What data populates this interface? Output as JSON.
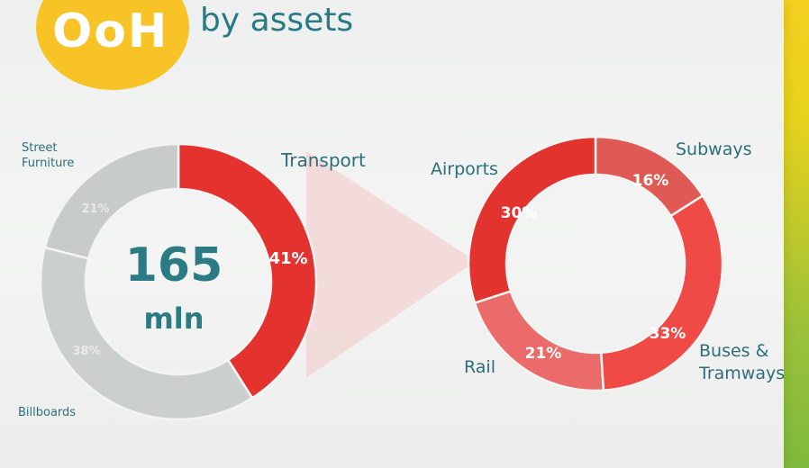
{
  "header": {
    "logo_text": "OoH",
    "title": "by assets"
  },
  "colors": {
    "logo": "#f7c326",
    "teal_text": "#2a7a85",
    "grey_segment": "#c9cdcb",
    "red_segment": "#e4332e",
    "callout": "#f1d3d2"
  },
  "chart_data": [
    {
      "type": "pie",
      "center_value": "165",
      "center_unit": "mln",
      "slices": [
        {
          "label": "Transport",
          "value": 41,
          "value_label": "41%",
          "color": "#e4332e"
        },
        {
          "label": "Billboards",
          "value": 38,
          "value_label": "38%",
          "color": "#cbcfcd"
        },
        {
          "label": "Street Furniture",
          "value": 21,
          "value_label": "21%",
          "color": "#c7cbc9"
        }
      ]
    },
    {
      "type": "pie",
      "slices": [
        {
          "label": "Subways",
          "value": 16,
          "value_label": "16%",
          "color": "#e05a55"
        },
        {
          "label": "Buses & Tramways",
          "value": 33,
          "value_label": "33%",
          "color": "#f04a47"
        },
        {
          "label": "Rail",
          "value": 21,
          "value_label": "21%",
          "color": "#ea6b69"
        },
        {
          "label": "Airports",
          "value": 30,
          "value_label": "30%",
          "color": "#e2332f"
        }
      ]
    }
  ]
}
